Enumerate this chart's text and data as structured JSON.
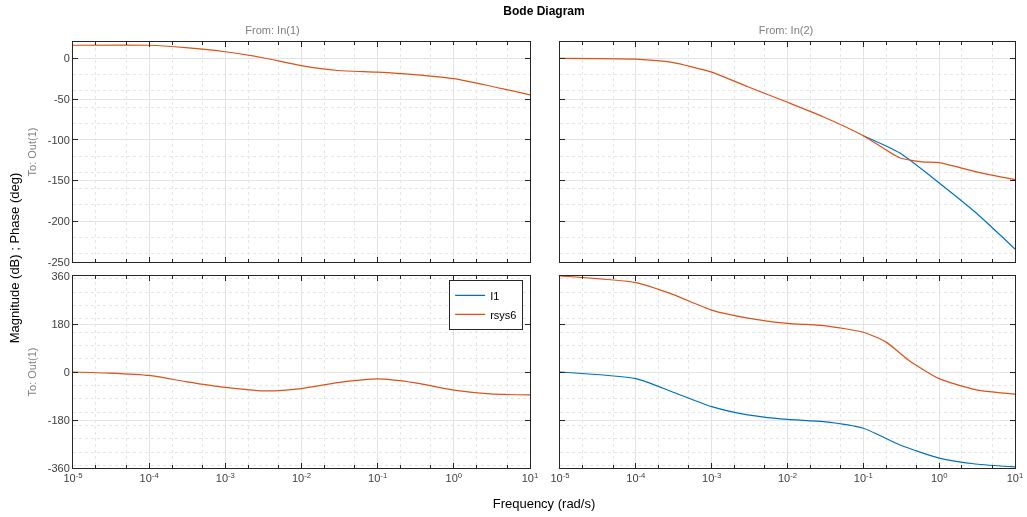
{
  "chart_data": [
    {
      "type": "line",
      "title": "From: In(1)",
      "ylabel": "To: Out(1)",
      "annotations": [
        "Bode Diagram",
        "Magnitude (dB) ; Phase (deg)",
        "Frequency  (rad/s)"
      ],
      "log": "x",
      "grid": true,
      "tick_labels": "y",
      "xlim": [
        1e-05,
        10
      ],
      "xticks": [
        {
          "value": 1e-05,
          "label": null
        },
        {
          "value": 0.0001,
          "label": null
        },
        {
          "value": 0.001,
          "label": null
        },
        {
          "value": 0.01,
          "label": null
        },
        {
          "value": 0.1,
          "label": null
        },
        {
          "value": 1,
          "label": null
        },
        {
          "value": 10,
          "label": null
        }
      ],
      "ylim": [
        -250,
        20
      ],
      "yticks": [
        -250,
        -200,
        -150,
        -100,
        -50,
        0
      ],
      "x": [
        1e-05,
        0.0001,
        0.0003,
        0.001,
        0.003,
        0.01,
        0.03,
        0.1,
        0.3,
        1,
        3,
        10
      ],
      "series": [
        {
          "color": "#d95319",
          "values": [
            16,
            16,
            13,
            8,
            1,
            -9,
            -15,
            -17,
            -20,
            -25,
            -34,
            -45
          ]
        }
      ]
    },
    {
      "type": "line",
      "title": "From: In(2)",
      "log": "x",
      "grid": true,
      "tick_labels": false,
      "xlim": [
        1e-05,
        10
      ],
      "xticks": [
        {
          "value": 1e-05,
          "label": null
        },
        {
          "value": 0.0001,
          "label": null
        },
        {
          "value": 0.001,
          "label": null
        },
        {
          "value": 0.01,
          "label": null
        },
        {
          "value": 0.1,
          "label": null
        },
        {
          "value": 1,
          "label": null
        },
        {
          "value": 10,
          "label": null
        }
      ],
      "ylim": [
        -250,
        20
      ],
      "yticks": [
        {
          "value": -250,
          "label": null
        },
        {
          "value": -200,
          "label": null
        },
        {
          "value": -150,
          "label": null
        },
        {
          "value": -100,
          "label": null
        },
        {
          "value": -50,
          "label": null
        },
        {
          "value": 0,
          "label": null
        }
      ],
      "series": [
        {
          "color": "#0072bd",
          "x": [
            0.1,
            0.3,
            1,
            3,
            10
          ],
          "values": [
            -95,
            -116,
            -153,
            -189,
            -234
          ]
        },
        {
          "color": "#d95319",
          "x": [
            1e-05,
            0.0001,
            0.0003,
            0.001,
            0.003,
            0.01,
            0.03,
            0.1,
            0.3,
            0.6,
            1,
            3,
            10
          ],
          "values": [
            0,
            -1,
            -5,
            -17,
            -35,
            -54,
            -72,
            -95,
            -122,
            -127,
            -128,
            -139,
            -149
          ]
        }
      ]
    },
    {
      "type": "line",
      "ylabel": "To: Out(1)",
      "log": "x",
      "grid": true,
      "legend": "top right",
      "xlim": [
        1e-05,
        10
      ],
      "xticks": [
        {
          "value": 1e-05,
          "label": "10$^{-5}$"
        },
        {
          "value": 0.0001,
          "label": "10$^{-4}$"
        },
        {
          "value": 0.001,
          "label": "10$^{-3}$"
        },
        {
          "value": 0.01,
          "label": "10$^{-2}$"
        },
        {
          "value": 0.1,
          "label": "10$^{-1}$"
        },
        {
          "value": 1,
          "label": "10$^{0}$"
        },
        {
          "value": 10,
          "label": "10$^{1}$"
        }
      ],
      "ylim": [
        -360,
        360
      ],
      "yticks": [
        -360,
        -180,
        0,
        180,
        360
      ],
      "x": [
        1e-05,
        3e-05,
        0.0001,
        0.0003,
        0.001,
        0.0035,
        0.01,
        0.03,
        0.1,
        0.3,
        1,
        3,
        10
      ],
      "series": [
        {
          "name": "I1",
          "color": "#0072bd",
          "values": [
            null,
            null,
            null,
            null,
            null,
            null,
            null,
            null,
            null,
            null,
            null,
            null,
            null
          ]
        },
        {
          "name": "rsys6",
          "color": "#d95319",
          "values": [
            0,
            -4,
            -13,
            -36,
            -58,
            -71,
            -62,
            -40,
            -26,
            -40,
            -68,
            -82,
            -86
          ]
        }
      ]
    },
    {
      "type": "line",
      "log": "x",
      "grid": true,
      "tick_labels": "x",
      "xlim": [
        1e-05,
        10
      ],
      "xticks": [
        {
          "value": 1e-05,
          "label": "10$^{-5}$"
        },
        {
          "value": 0.0001,
          "label": "10$^{-4}$"
        },
        {
          "value": 0.001,
          "label": "10$^{-3}$"
        },
        {
          "value": 0.01,
          "label": "10$^{-2}$"
        },
        {
          "value": 0.1,
          "label": "10$^{-1}$"
        },
        {
          "value": 1,
          "label": "10$^{0}$"
        },
        {
          "value": 10,
          "label": "10$^{1}$"
        }
      ],
      "ylim": [
        -360,
        360
      ],
      "yticks": [
        {
          "value": -360,
          "label": null
        },
        {
          "value": -180,
          "label": null
        },
        {
          "value": 0,
          "label": null
        },
        {
          "value": 180,
          "label": null
        },
        {
          "value": 360,
          "label": null
        }
      ],
      "series": [
        {
          "color": "#0072bd",
          "x": [
            1e-05,
            0.0001,
            0.0003,
            0.001,
            0.003,
            0.01,
            0.03,
            0.1,
            0.3,
            1,
            3,
            10
          ],
          "values": [
            0,
            -25,
            -74,
            -130,
            -161,
            -178,
            -186,
            -211,
            -273,
            -323,
            -345,
            -356
          ]
        },
        {
          "color": "#d95319",
          "x": [
            1e-05,
            0.0001,
            0.0003,
            0.001,
            0.003,
            0.01,
            0.03,
            0.1,
            0.2,
            0.4,
            1,
            3,
            10
          ],
          "values": [
            360,
            335,
            292,
            232,
            202,
            182,
            174,
            149,
            112,
            43,
            -25,
            -66,
            -83
          ]
        }
      ]
    }
  ]
}
